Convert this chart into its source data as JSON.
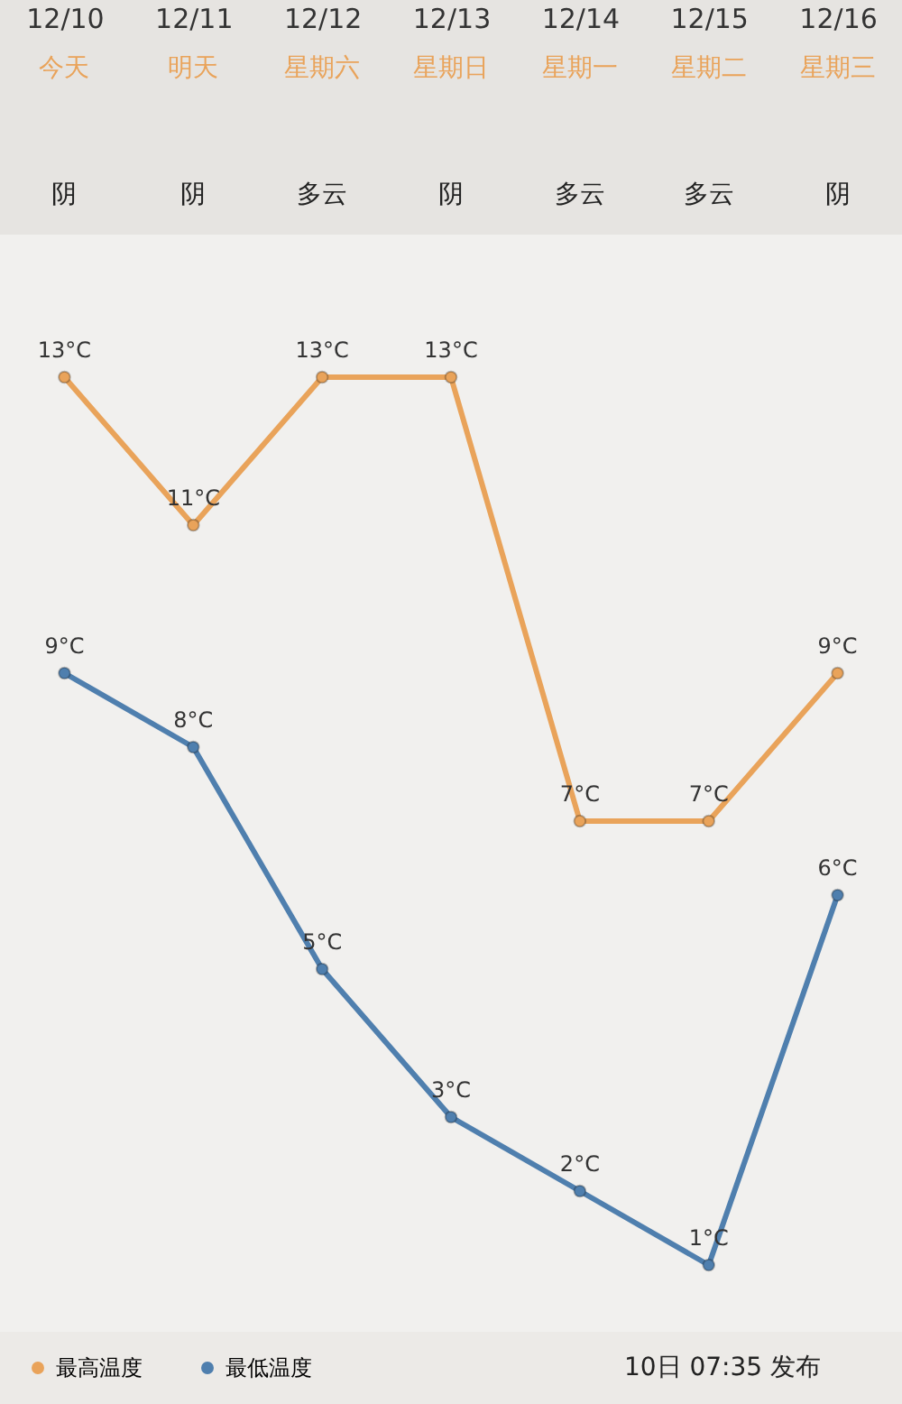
{
  "chart_data": {
    "type": "line",
    "categories": [
      "12/10",
      "12/11",
      "12/12",
      "12/13",
      "12/14",
      "12/15",
      "12/16"
    ],
    "series": [
      {
        "name": "最高温度",
        "color": "#e9a35a",
        "values": [
          13,
          11,
          13,
          13,
          7,
          7,
          9
        ],
        "value_labels": [
          "13°C",
          "11°C",
          "13°C",
          "13°C",
          "7°C",
          "7°C",
          "9°C"
        ]
      },
      {
        "name": "最低温度",
        "color": "#4f7fae",
        "values": [
          9,
          8,
          5,
          3,
          2,
          1,
          6
        ],
        "value_labels": [
          "9°C",
          "8°C",
          "5°C",
          "3°C",
          "2°C",
          "1°C",
          "6°C"
        ]
      }
    ],
    "tick_labels": "x",
    "marker": "circle",
    "line_style": "solid",
    "legend": "bottom left",
    "annotations": [
      "今天",
      "明天",
      "星期六",
      "星期日",
      "星期一",
      "星期二",
      "星期三",
      "阴",
      "阴",
      "多云",
      "阴",
      "多云",
      "多云",
      "阴",
      "10日 07:35 发布"
    ]
  }
}
